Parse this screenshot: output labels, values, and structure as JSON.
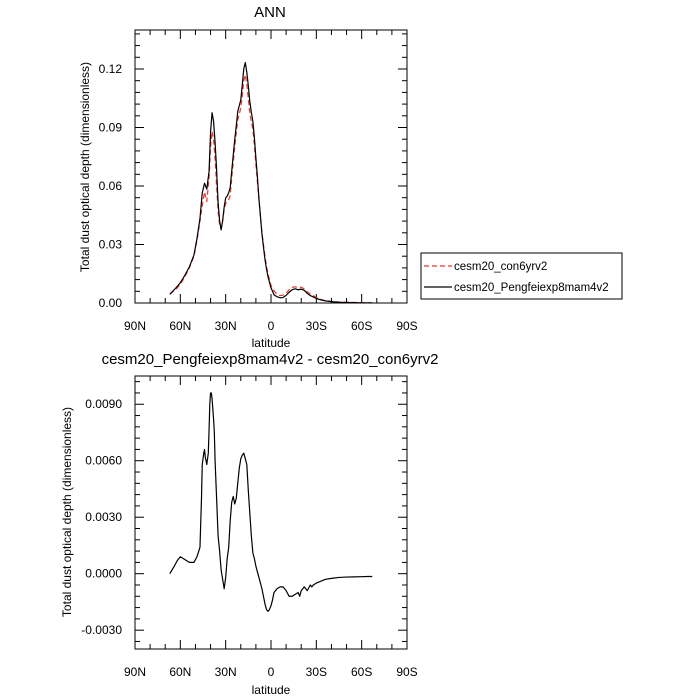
{
  "chart_data": [
    {
      "type": "line",
      "title": "ANN",
      "xlabel": "latitude",
      "ylabel": "Total dust optical depth (dimensionless)",
      "xlim": [
        90,
        -90
      ],
      "ylim": [
        0,
        0.14
      ],
      "x_ticks": [
        90,
        60,
        30,
        0,
        -30,
        -60,
        -90
      ],
      "x_tick_labels": [
        "90N",
        "60N",
        "30N",
        "0",
        "30S",
        "60S",
        "90S"
      ],
      "y_ticks": [
        0,
        0.03,
        0.06,
        0.09,
        0.12
      ],
      "y_tick_labels": [
        "0.00",
        "0.03",
        "0.06",
        "0.09",
        "0.12"
      ],
      "legend": [
        "cesm20_con6yrv2",
        "cesm20_Pengfeiexp8mam4v2"
      ],
      "series": [
        {
          "name": "cesm20_con6yrv2",
          "color": "#e8372c",
          "dash": "dashed",
          "x": [
            67,
            63,
            60,
            57,
            54,
            51,
            49,
            47,
            45.5,
            44,
            42.5,
            41,
            40,
            39,
            38,
            37,
            36,
            35,
            34,
            33,
            32,
            31,
            30,
            29,
            28,
            27,
            26,
            25,
            24,
            23,
            22,
            21,
            20,
            19,
            18,
            17,
            16,
            15,
            14,
            13,
            12,
            11,
            10,
            9,
            8,
            7,
            6,
            5,
            4,
            3,
            2,
            1,
            0,
            -1,
            -2,
            -4,
            -6,
            -8,
            -10,
            -12,
            -14,
            -16,
            -18,
            -20,
            -22,
            -24,
            -26,
            -28,
            -30,
            -33,
            -36,
            -40,
            -45,
            -50,
            -55,
            -60,
            -64,
            -67
          ],
          "values": [
            0.0045,
            0.007,
            0.0095,
            0.0135,
            0.018,
            0.024,
            0.032,
            0.042,
            0.05,
            0.057,
            0.052,
            0.064,
            0.08,
            0.088,
            0.084,
            0.074,
            0.06,
            0.047,
            0.04,
            0.038,
            0.042,
            0.048,
            0.051,
            0.052,
            0.053,
            0.055,
            0.064,
            0.072,
            0.08,
            0.087,
            0.094,
            0.097,
            0.1,
            0.106,
            0.114,
            0.117,
            0.112,
            0.105,
            0.097,
            0.093,
            0.089,
            0.081,
            0.071,
            0.062,
            0.053,
            0.044,
            0.036,
            0.03,
            0.024,
            0.019,
            0.015,
            0.012,
            0.009,
            0.0075,
            0.0062,
            0.0045,
            0.0038,
            0.004,
            0.005,
            0.0068,
            0.008,
            0.0083,
            0.008,
            0.0081,
            0.0072,
            0.0058,
            0.0045,
            0.0038,
            0.0028,
            0.0018,
            0.0012,
            0.0008,
            0.0005,
            0.0004,
            0.0003,
            0.0002,
            0.0001,
            0.0001
          ]
        },
        {
          "name": "cesm20_Pengfeiexp8mam4v2",
          "color": "#000000",
          "dash": "solid",
          "x": [
            67,
            63,
            60,
            57,
            54,
            51,
            49,
            47,
            45.5,
            44,
            42.5,
            41,
            40,
            39,
            38,
            37,
            36,
            35,
            34,
            33,
            32,
            31,
            30,
            29,
            28,
            27,
            26,
            25,
            24,
            23,
            22,
            21,
            20,
            19,
            18,
            17,
            16,
            15,
            14,
            13,
            12,
            11,
            10,
            9,
            8,
            7,
            6,
            5,
            4,
            3,
            2,
            1,
            0,
            -1,
            -2,
            -4,
            -6,
            -8,
            -10,
            -12,
            -14,
            -16,
            -18,
            -20,
            -22,
            -24,
            -26,
            -28,
            -30,
            -33,
            -36,
            -40,
            -45,
            -50,
            -55,
            -60,
            -64,
            -67
          ],
          "values": [
            0.0045,
            0.0077,
            0.0104,
            0.0142,
            0.0186,
            0.0246,
            0.033,
            0.0434,
            0.0564,
            0.0614,
            0.0584,
            0.0674,
            0.0876,
            0.0976,
            0.0931,
            0.0823,
            0.0686,
            0.0513,
            0.0422,
            0.0375,
            0.0422,
            0.0492,
            0.0539,
            0.0548,
            0.0565,
            0.0592,
            0.0676,
            0.0757,
            0.0838,
            0.0907,
            0.0982,
            0.1012,
            0.1041,
            0.1119,
            0.1202,
            0.1233,
            0.1183,
            0.1113,
            0.1032,
            0.0977,
            0.0931,
            0.0848,
            0.0744,
            0.0648,
            0.0537,
            0.0448,
            0.0356,
            0.0288,
            0.0224,
            0.0175,
            0.0135,
            0.0106,
            0.0077,
            0.0061,
            0.0042,
            0.0032,
            0.0027,
            0.0028,
            0.0039,
            0.0055,
            0.0068,
            0.0073,
            0.0068,
            0.0071,
            0.0065,
            0.0049,
            0.0038,
            0.0031,
            0.0023,
            0.0016,
            0.0011,
            0.0007,
            0.0004,
            0.0003,
            0.0002,
            0.0001,
            0.0001,
            0.0001
          ]
        }
      ]
    },
    {
      "type": "line",
      "title": "cesm20_Pengfeiexp8mam4v2 - cesm20_con6yrv2",
      "xlabel": "latitude",
      "ylabel": "Total dust optical depth (dimensionless)",
      "xlim": [
        90,
        -90
      ],
      "ylim": [
        -0.004,
        0.0105
      ],
      "x_ticks": [
        90,
        60,
        30,
        0,
        -30,
        -60,
        -90
      ],
      "x_tick_labels": [
        "90N",
        "60N",
        "30N",
        "0",
        "30S",
        "60S",
        "90S"
      ],
      "y_ticks": [
        -0.003,
        0,
        0.003,
        0.006,
        0.009
      ],
      "y_tick_labels": [
        "-0.0030",
        "0.0000",
        "0.0030",
        "0.0060",
        "0.0090"
      ],
      "series": [
        {
          "name": "cesm20_Pengfeiexp8mam4v2 - cesm20_con6yrv2",
          "color": "#000000",
          "dash": "solid",
          "x": [
            67,
            65.5,
            64,
            62,
            60,
            58,
            56,
            54,
            51,
            49,
            47,
            46,
            45.5,
            44.5,
            44,
            43.5,
            42.5,
            41.5,
            41,
            40.5,
            40,
            39.5,
            39,
            38,
            37.5,
            37,
            36,
            35,
            34,
            33,
            32,
            31,
            30,
            29,
            28,
            27,
            26,
            25,
            24,
            23,
            22,
            21,
            20,
            19,
            18,
            17,
            16,
            15,
            14,
            13,
            12,
            11,
            10,
            9,
            8,
            7,
            6,
            5,
            4,
            3,
            2,
            1,
            0,
            -1,
            -2,
            -4,
            -6,
            -8,
            -10,
            -12,
            -14,
            -16,
            -18,
            -19,
            -20,
            -22,
            -24,
            -26,
            -27,
            -28,
            -30,
            -33,
            -36,
            -40,
            -45,
            -50,
            -55,
            -60,
            -64,
            -67
          ],
          "values": [
            0,
            0.0002,
            0.0004,
            0.0007,
            0.0009,
            0.0008,
            0.0007,
            0.0006,
            0.0006,
            0.0009,
            0.0014,
            0.004,
            0.0058,
            0.0064,
            0.0066,
            0.0062,
            0.0058,
            0.0064,
            0.0076,
            0.009,
            0.0096,
            0.0096,
            0.0093,
            0.0082,
            0.0075,
            0.006,
            0.004,
            0.002,
            0.0012,
            0.0002,
            -0.0003,
            -0.0008,
            -0.0002,
            0.0008,
            0.0014,
            0.0028,
            0.0038,
            0.0041,
            0.0037,
            0.004,
            0.0048,
            0.0056,
            0.0061,
            0.0063,
            0.0064,
            0.0061,
            0.0058,
            0.0044,
            0.0032,
            0.002,
            0.0011,
            0.0008,
            0.0004,
            0.0001,
            -0.0002,
            -0.0005,
            -0.0008,
            -0.0012,
            -0.0016,
            -0.0019,
            -0.002,
            -0.0019,
            -0.0017,
            -0.0014,
            -0.001,
            -0.0008,
            -0.0007,
            -0.0007,
            -0.0009,
            -0.0012,
            -0.0012,
            -0.0011,
            -0.001,
            -0.0012,
            -0.0009,
            -0.0007,
            -0.0009,
            -0.0006,
            -0.0007,
            -0.0006,
            -0.0005,
            -0.0004,
            -0.0003,
            -0.00025,
            -0.0002,
            -0.00018,
            -0.00017,
            -0.00016,
            -0.00015,
            -0.00015
          ]
        }
      ]
    }
  ]
}
